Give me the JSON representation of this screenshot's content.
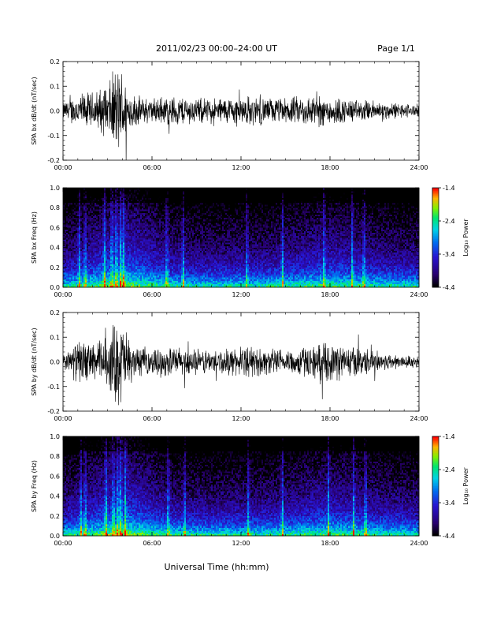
{
  "header": {
    "title": "2011/02/23  00:00–24:00 UT",
    "page": "Page 1/1"
  },
  "xlabel": "Universal Time (hh:mm)",
  "chart_data": [
    {
      "type": "line",
      "ylabel": "SPA bx dB/dt (nT/sec)",
      "xlim": [
        0,
        24
      ],
      "ylim": [
        -0.2,
        0.2
      ],
      "x_ticks": [
        "00:00",
        "06:00",
        "12:00",
        "18:00",
        "24:00"
      ],
      "y_ticks": [
        "-0.2",
        "-0.1",
        "0.0",
        "0.1",
        "0.2"
      ],
      "envelope": {
        "hours": [
          0,
          1,
          2,
          3,
          3.5,
          4,
          4.5,
          5,
          6,
          7,
          8,
          9,
          10,
          11,
          12,
          13,
          14,
          15,
          16,
          17,
          18,
          19,
          20,
          21,
          22,
          23,
          24
        ],
        "amplitude": [
          0.04,
          0.08,
          0.09,
          0.12,
          0.2,
          0.2,
          0.09,
          0.07,
          0.06,
          0.07,
          0.07,
          0.06,
          0.06,
          0.065,
          0.07,
          0.07,
          0.06,
          0.06,
          0.07,
          0.075,
          0.07,
          0.06,
          0.05,
          0.05,
          0.04,
          0.035,
          0.03
        ]
      }
    },
    {
      "type": "heatmap",
      "ylabel": "SPA bx Freq (Hz)",
      "xlim": [
        0,
        24
      ],
      "ylim": [
        0,
        1.0
      ],
      "x_ticks": [
        "00:00",
        "06:00",
        "12:00",
        "18:00",
        "24:00"
      ],
      "y_ticks": [
        "0.0",
        "0.2",
        "0.4",
        "0.6",
        "0.8",
        "1.0"
      ],
      "colorbar": {
        "label": "Log₁₀ Power",
        "range": [
          -4.4,
          -1.4
        ],
        "ticks": [
          "-1.4",
          "-2.4",
          "-3.4",
          "-4.4"
        ]
      },
      "bursts_hours": [
        1.1,
        1.5,
        2.8,
        3.3,
        3.6,
        3.9,
        4.1,
        7.0,
        8.1,
        12.4,
        14.8,
        17.6,
        19.5,
        20.3
      ]
    },
    {
      "type": "line",
      "ylabel": "SPA by dB/dt (nT/sec)",
      "xlim": [
        0,
        24
      ],
      "ylim": [
        -0.2,
        0.2
      ],
      "x_ticks": [
        "00:00",
        "06:00",
        "12:00",
        "18:00",
        "24:00"
      ],
      "y_ticks": [
        "-0.2",
        "-0.1",
        "0.0",
        "0.1",
        "0.2"
      ],
      "envelope": {
        "hours": [
          0,
          1,
          2,
          3,
          3.5,
          4,
          4.5,
          5,
          6,
          7,
          8,
          9,
          10,
          11,
          12,
          13,
          14,
          15,
          16,
          17,
          18,
          19,
          20,
          21,
          22,
          23,
          24
        ],
        "amplitude": [
          0.03,
          0.1,
          0.09,
          0.12,
          0.2,
          0.2,
          0.1,
          0.07,
          0.06,
          0.07,
          0.07,
          0.06,
          0.06,
          0.06,
          0.07,
          0.07,
          0.06,
          0.06,
          0.07,
          0.08,
          0.09,
          0.08,
          0.07,
          0.05,
          0.04,
          0.03,
          0.03
        ]
      }
    },
    {
      "type": "heatmap",
      "ylabel": "SPA by Freq (Hz)",
      "xlim": [
        0,
        24
      ],
      "ylim": [
        0,
        1.0
      ],
      "x_ticks": [
        "00:00",
        "06:00",
        "12:00",
        "18:00",
        "24:00"
      ],
      "y_ticks": [
        "0.0",
        "0.2",
        "0.4",
        "0.6",
        "0.8",
        "1.0"
      ],
      "colorbar": {
        "label": "Log₁₀ Power",
        "range": [
          -4.4,
          -1.4
        ],
        "ticks": [
          "-1.4",
          "-2.4",
          "-3.4",
          "-4.4"
        ]
      },
      "bursts_hours": [
        1.2,
        1.5,
        2.9,
        3.4,
        3.7,
        3.9,
        4.2,
        7.1,
        8.2,
        12.5,
        14.8,
        17.9,
        19.6,
        20.4
      ]
    }
  ]
}
